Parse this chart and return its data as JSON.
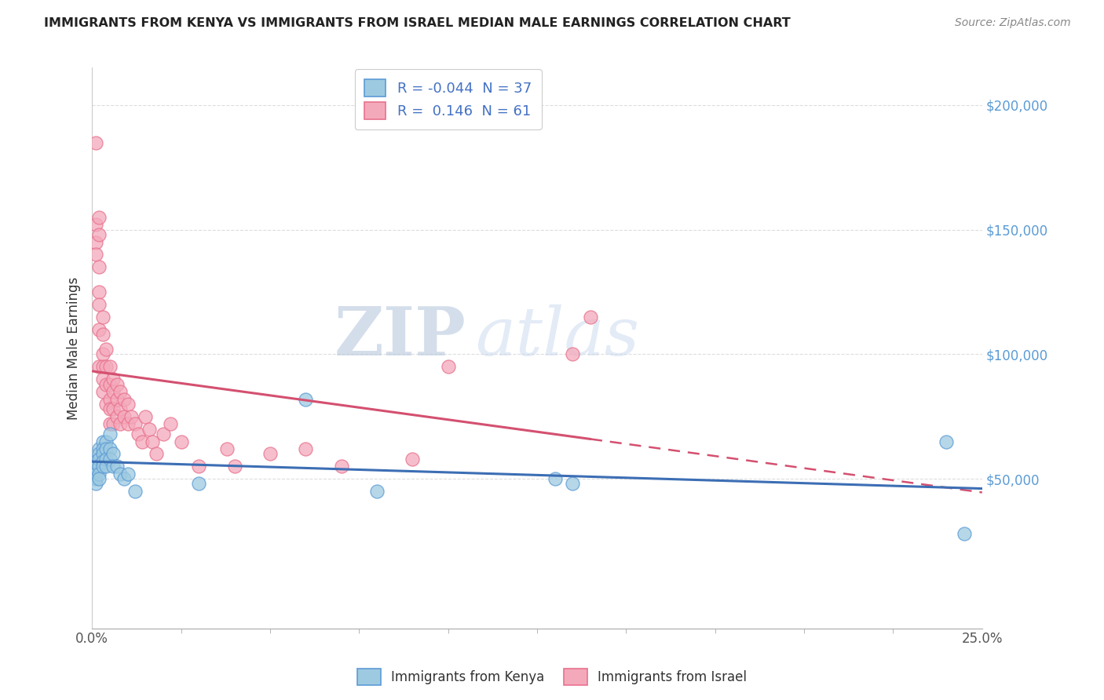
{
  "title": "IMMIGRANTS FROM KENYA VS IMMIGRANTS FROM ISRAEL MEDIAN MALE EARNINGS CORRELATION CHART",
  "source": "Source: ZipAtlas.com",
  "ylabel": "Median Male Earnings",
  "xlim": [
    0.0,
    0.25
  ],
  "ylim": [
    -10000,
    215000
  ],
  "xticks": [
    0.0,
    0.25
  ],
  "xticklabels": [
    "0.0%",
    "25.0%"
  ],
  "yticks_right": [
    50000,
    100000,
    150000,
    200000
  ],
  "yticklabels_right": [
    "$50,000",
    "$100,000",
    "$150,000",
    "$200,000"
  ],
  "kenya_color": "#5b9bd5",
  "kenya_color_fill": "#9ecae1",
  "israel_color": "#e8718d",
  "israel_color_fill": "#f4a9bb",
  "kenya_line_color": "#3c6eb4",
  "israel_line_color": "#d45070",
  "kenya_R": "-0.044",
  "kenya_N": "37",
  "israel_R": "0.146",
  "israel_N": "61",
  "legend_labels": [
    "Immigrants from Kenya",
    "Immigrants from Israel"
  ],
  "watermark_zip": "ZIP",
  "watermark_atlas": "atlas",
  "kenya_x": [
    0.001,
    0.001,
    0.001,
    0.001,
    0.001,
    0.002,
    0.002,
    0.002,
    0.002,
    0.002,
    0.002,
    0.003,
    0.003,
    0.003,
    0.003,
    0.003,
    0.004,
    0.004,
    0.004,
    0.004,
    0.005,
    0.005,
    0.005,
    0.006,
    0.006,
    0.007,
    0.008,
    0.009,
    0.01,
    0.012,
    0.03,
    0.06,
    0.08,
    0.13,
    0.135,
    0.24,
    0.245
  ],
  "kenya_y": [
    57000,
    55000,
    52000,
    50000,
    48000,
    62000,
    60000,
    58000,
    55000,
    52000,
    50000,
    65000,
    62000,
    60000,
    57000,
    55000,
    65000,
    62000,
    58000,
    55000,
    68000,
    62000,
    58000,
    60000,
    55000,
    55000,
    52000,
    50000,
    52000,
    45000,
    48000,
    82000,
    45000,
    50000,
    48000,
    65000,
    28000
  ],
  "israel_x": [
    0.001,
    0.001,
    0.001,
    0.001,
    0.002,
    0.002,
    0.002,
    0.002,
    0.002,
    0.002,
    0.002,
    0.003,
    0.003,
    0.003,
    0.003,
    0.003,
    0.003,
    0.004,
    0.004,
    0.004,
    0.004,
    0.005,
    0.005,
    0.005,
    0.005,
    0.005,
    0.006,
    0.006,
    0.006,
    0.006,
    0.007,
    0.007,
    0.007,
    0.008,
    0.008,
    0.008,
    0.009,
    0.009,
    0.01,
    0.01,
    0.011,
    0.012,
    0.013,
    0.014,
    0.015,
    0.016,
    0.017,
    0.018,
    0.02,
    0.022,
    0.025,
    0.03,
    0.038,
    0.04,
    0.05,
    0.06,
    0.07,
    0.09,
    0.1,
    0.135,
    0.14
  ],
  "israel_y": [
    185000,
    152000,
    145000,
    140000,
    155000,
    148000,
    135000,
    125000,
    120000,
    110000,
    95000,
    115000,
    108000,
    100000,
    95000,
    90000,
    85000,
    102000,
    95000,
    88000,
    80000,
    95000,
    88000,
    82000,
    78000,
    72000,
    90000,
    85000,
    78000,
    72000,
    88000,
    82000,
    75000,
    85000,
    78000,
    72000,
    82000,
    75000,
    80000,
    72000,
    75000,
    72000,
    68000,
    65000,
    75000,
    70000,
    65000,
    60000,
    68000,
    72000,
    65000,
    55000,
    62000,
    55000,
    60000,
    62000,
    55000,
    58000,
    95000,
    100000,
    115000
  ],
  "grid_yticks": [
    50000,
    100000,
    150000,
    200000
  ]
}
